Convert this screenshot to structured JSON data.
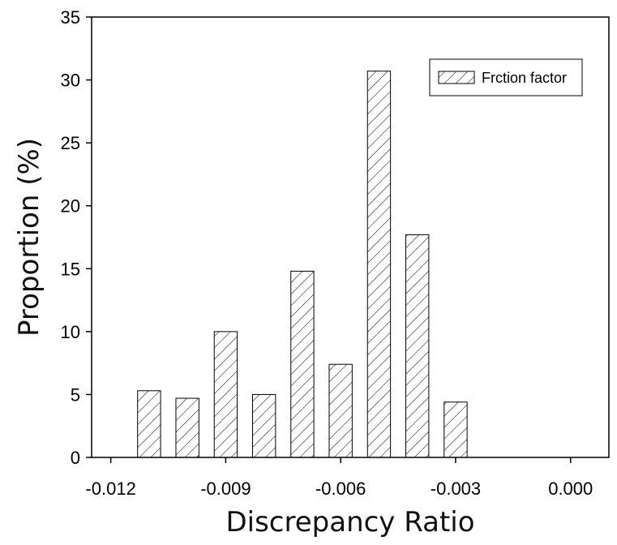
{
  "chart_data": {
    "type": "bar",
    "title": "",
    "xlabel": "Discrepancy Ratio",
    "ylabel": "Proportion (%)",
    "xlim": [
      -0.0125,
      0.001
    ],
    "ylim": [
      0,
      35
    ],
    "x_ticks": [
      -0.012,
      -0.009,
      -0.006,
      -0.003,
      0.0
    ],
    "x_tick_labels": [
      "-0.012",
      "-0.009",
      "-0.006",
      "-0.003",
      "0.000"
    ],
    "y_ticks": [
      0,
      5,
      10,
      15,
      20,
      25,
      30,
      35
    ],
    "bar_width": 0.0006,
    "series": [
      {
        "name": "Frction factor",
        "x": [
          -0.011,
          -0.01,
          -0.009,
          -0.008,
          -0.007,
          -0.006,
          -0.005,
          -0.004,
          -0.003
        ],
        "values": [
          5.3,
          4.7,
          10.0,
          5.0,
          14.8,
          7.4,
          30.7,
          17.7,
          4.4
        ]
      }
    ],
    "legend_position": "top-right",
    "grid": false,
    "fill": "diagonal-hatch"
  }
}
